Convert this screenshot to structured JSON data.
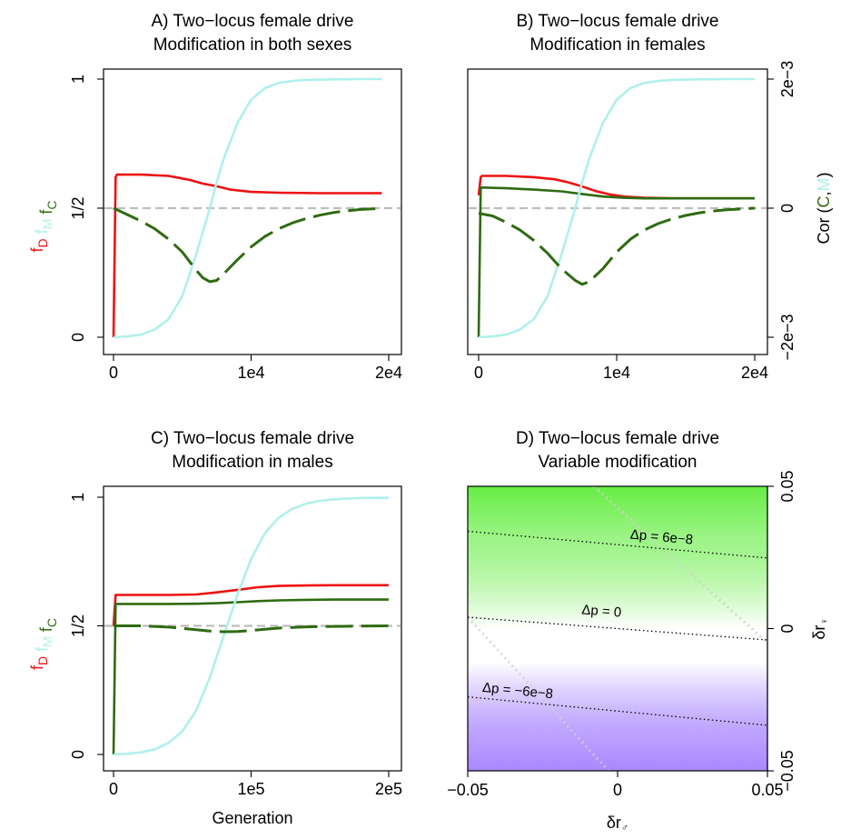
{
  "colors": {
    "drive": "#ee1111",
    "modifier": "#aff0ec",
    "cor": "#2e6b12",
    "reference": "#bdbdbd",
    "contour": "#000000",
    "green": "#66ee44",
    "purple": "#aa88ff"
  },
  "chart_data": [
    {
      "id": "A",
      "type": "line",
      "title": [
        "A) Two−locus female drive",
        "Modification in both sexes"
      ],
      "xlim": [
        0,
        20000
      ],
      "ylim": [
        0,
        1
      ],
      "xticks": [
        {
          "v": 0,
          "label": "0"
        },
        {
          "v": 10000,
          "label": "1e4"
        },
        {
          "v": 20000,
          "label": "2e4"
        }
      ],
      "yticks": [
        {
          "v": 0,
          "label": "0"
        },
        {
          "v": 0.5,
          "label": "1/2"
        },
        {
          "v": 1,
          "label": "1"
        }
      ],
      "ylabel": {
        "parts": [
          {
            "t": "f",
            "s": "D",
            "c": "drive"
          },
          {
            "t": "f",
            "s": "M",
            "c": "modifier"
          },
          {
            "t": "f",
            "s": "C",
            "c": "cor"
          }
        ]
      },
      "reference_y": 0.5,
      "series": [
        {
          "name": "f_D",
          "color": "drive",
          "x": [
            0,
            150,
            250,
            2000,
            4000,
            5500,
            6500,
            7500,
            8500,
            10000,
            12000,
            15000,
            19500
          ],
          "y": [
            0.0,
            0.62,
            0.63,
            0.63,
            0.625,
            0.61,
            0.595,
            0.585,
            0.572,
            0.563,
            0.56,
            0.558,
            0.558
          ]
        },
        {
          "name": "f_M",
          "color": "modifier",
          "x": [
            0,
            1000,
            2000,
            3000,
            4000,
            5000,
            6000,
            7000,
            7500,
            8000,
            9000,
            10000,
            11000,
            12000,
            13000,
            14000,
            16000,
            18000,
            19500
          ],
          "y": [
            0.0,
            0.003,
            0.01,
            0.03,
            0.07,
            0.16,
            0.32,
            0.5,
            0.6,
            0.69,
            0.83,
            0.92,
            0.965,
            0.985,
            0.993,
            0.997,
            0.999,
            1.0,
            1.0
          ]
        },
        {
          "name": "Cor(C,M)",
          "color": "cor",
          "dashed": true,
          "x": [
            0,
            1000,
            2000,
            3000,
            4000,
            5000,
            6000,
            6500,
            7000,
            7500,
            8000,
            9000,
            10000,
            11000,
            12000,
            13000,
            14000,
            15000,
            16000,
            17000,
            18000,
            19000,
            19500
          ],
          "y": [
            0.5,
            0.475,
            0.45,
            0.42,
            0.38,
            0.33,
            0.26,
            0.23,
            0.215,
            0.22,
            0.245,
            0.3,
            0.35,
            0.39,
            0.42,
            0.443,
            0.46,
            0.473,
            0.483,
            0.49,
            0.495,
            0.498,
            0.5
          ]
        }
      ]
    },
    {
      "id": "B",
      "type": "line",
      "title": [
        "B) Two−locus female drive",
        "Modification in females"
      ],
      "xlim": [
        0,
        20000
      ],
      "ylim": [
        0,
        1
      ],
      "xticks": [
        {
          "v": 0,
          "label": "0"
        },
        {
          "v": 10000,
          "label": "1e4"
        },
        {
          "v": 20000,
          "label": "2e4"
        }
      ],
      "right_axis": {
        "label": {
          "parts": [
            {
              "t": "Cor (",
              "c": "black"
            },
            {
              "t": "C",
              "c": "cor"
            },
            {
              "t": ",",
              "c": "black"
            },
            {
              "t": "M",
              "c": "modifier"
            },
            {
              "t": ")",
              "c": "black"
            }
          ]
        },
        "ticks": [
          {
            "v": 0,
            "label": "−2e−3"
          },
          {
            "v": 0.5,
            "label": "0"
          },
          {
            "v": 1,
            "label": "2e−3"
          }
        ]
      },
      "reference_y": 0.5,
      "series": [
        {
          "name": "f_D",
          "color": "drive",
          "x": [
            0,
            150,
            250,
            2000,
            4000,
            5500,
            6500,
            7500,
            8500,
            9500,
            10500,
            12000,
            14000,
            16000,
            20000
          ],
          "y": [
            0.55,
            0.62,
            0.625,
            0.625,
            0.62,
            0.612,
            0.6,
            0.584,
            0.566,
            0.553,
            0.545,
            0.54,
            0.538,
            0.538,
            0.538
          ]
        },
        {
          "name": "f_C",
          "color": "cor",
          "x": [
            0,
            150,
            250,
            2000,
            4000,
            6000,
            7500,
            9000,
            10500,
            12000,
            14000,
            16000,
            20000
          ],
          "y": [
            0.0,
            0.58,
            0.58,
            0.577,
            0.572,
            0.565,
            0.555,
            0.545,
            0.54,
            0.538,
            0.538,
            0.538,
            0.538
          ]
        },
        {
          "name": "f_M",
          "color": "modifier",
          "x": [
            0,
            1000,
            2000,
            3000,
            4000,
            5000,
            6000,
            7000,
            7500,
            8000,
            9000,
            10000,
            11000,
            12000,
            13000,
            14000,
            16000,
            18000,
            20000
          ],
          "y": [
            0.0,
            0.003,
            0.01,
            0.03,
            0.07,
            0.16,
            0.32,
            0.5,
            0.6,
            0.69,
            0.83,
            0.92,
            0.965,
            0.985,
            0.993,
            0.997,
            0.999,
            1.0,
            1.0
          ]
        },
        {
          "name": "Cor(C,M)",
          "color": "cor",
          "dashed": true,
          "x": [
            0,
            1000,
            2000,
            3000,
            4000,
            5000,
            6000,
            7000,
            7500,
            8000,
            9000,
            10000,
            11000,
            12000,
            13000,
            14000,
            15000,
            16000,
            17000,
            18000,
            19000,
            20000
          ],
          "y": [
            0.48,
            0.47,
            0.445,
            0.415,
            0.375,
            0.325,
            0.265,
            0.22,
            0.205,
            0.215,
            0.265,
            0.33,
            0.38,
            0.415,
            0.44,
            0.458,
            0.472,
            0.482,
            0.489,
            0.494,
            0.497,
            0.5
          ]
        }
      ]
    },
    {
      "id": "C",
      "type": "line",
      "title": [
        "C) Two−locus female drive",
        "Modification in males"
      ],
      "xlim": [
        0,
        200000
      ],
      "ylim": [
        0,
        1
      ],
      "xticks": [
        {
          "v": 0,
          "label": "0"
        },
        {
          "v": 100000,
          "label": "1e5"
        },
        {
          "v": 200000,
          "label": "2e5"
        }
      ],
      "yticks": [
        {
          "v": 0,
          "label": "0"
        },
        {
          "v": 0.5,
          "label": "1/2"
        },
        {
          "v": 1,
          "label": "1"
        }
      ],
      "xlabel": "Generation",
      "ylabel": {
        "parts": [
          {
            "t": "f",
            "s": "D",
            "c": "drive"
          },
          {
            "t": "f",
            "s": "M",
            "c": "modifier"
          },
          {
            "t": "f",
            "s": "C",
            "c": "cor"
          }
        ]
      },
      "reference_y": 0.5,
      "series": [
        {
          "name": "f_D",
          "color": "drive",
          "x": [
            0,
            1500,
            3000,
            40000,
            60000,
            75000,
            90000,
            105000,
            120000,
            140000,
            160000,
            200000
          ],
          "y": [
            0.5,
            0.62,
            0.62,
            0.62,
            0.622,
            0.63,
            0.64,
            0.65,
            0.655,
            0.657,
            0.658,
            0.658
          ]
        },
        {
          "name": "f_C",
          "color": "cor",
          "x": [
            0,
            1500,
            3000,
            40000,
            60000,
            75000,
            90000,
            105000,
            120000,
            140000,
            160000,
            200000
          ],
          "y": [
            0.0,
            0.585,
            0.585,
            0.585,
            0.586,
            0.588,
            0.592,
            0.596,
            0.599,
            0.601,
            0.602,
            0.602
          ]
        },
        {
          "name": "f_M",
          "color": "modifier",
          "x": [
            0,
            10000,
            20000,
            30000,
            40000,
            50000,
            60000,
            70000,
            80000,
            90000,
            100000,
            110000,
            120000,
            130000,
            140000,
            150000,
            160000,
            180000,
            200000
          ],
          "y": [
            0.0,
            0.003,
            0.008,
            0.02,
            0.045,
            0.09,
            0.17,
            0.3,
            0.46,
            0.62,
            0.76,
            0.86,
            0.92,
            0.955,
            0.975,
            0.986,
            0.992,
            0.997,
            0.998
          ]
        },
        {
          "name": "Cor(C,M)",
          "color": "cor",
          "dashed": true,
          "x": [
            0,
            20000,
            40000,
            60000,
            70000,
            80000,
            90000,
            100000,
            110000,
            120000,
            130000,
            140000,
            160000,
            180000,
            200000
          ],
          "y": [
            0.5,
            0.5,
            0.495,
            0.485,
            0.48,
            0.477,
            0.478,
            0.482,
            0.487,
            0.491,
            0.494,
            0.496,
            0.498,
            0.499,
            0.5
          ]
        }
      ]
    },
    {
      "id": "D",
      "type": "heatmap",
      "title": [
        "D) Two−locus female drive",
        "Variable modification"
      ],
      "xlim": [
        -0.05,
        0.05
      ],
      "ylim": [
        -0.05,
        0.05
      ],
      "xticks": [
        {
          "v": -0.05,
          "label": "−0.05"
        },
        {
          "v": 0,
          "label": "0"
        },
        {
          "v": 0.05,
          "label": "0.05"
        }
      ],
      "yticks": [
        {
          "v": -0.05,
          "label": "−0.05"
        },
        {
          "v": 0,
          "label": "0"
        },
        {
          "v": 0.05,
          "label": "0.05"
        }
      ],
      "xlabel": {
        "t": "δr",
        "s": "♂"
      },
      "ylabel": {
        "t": "δr",
        "s": "♀"
      },
      "contours": [
        {
          "label": "Δp = 6e−8",
          "from": [
            -0.05,
            0.0342
          ],
          "to": [
            0.05,
            0.0248
          ],
          "label_at": [
            0.0145,
            0.03
          ]
        },
        {
          "label": "Δp = 0",
          "from": [
            -0.05,
            0.004
          ],
          "to": [
            0.05,
            -0.004
          ],
          "label_at": [
            -0.0055,
            0.004
          ]
        },
        {
          "label": "Δp = −6e−8",
          "from": [
            -0.05,
            -0.024
          ],
          "to": [
            0.05,
            -0.034
          ],
          "label_at": [
            -0.0335,
            -0.024
          ]
        }
      ],
      "diagonals": [
        {
          "from": [
            -0.008,
            0.05
          ],
          "to": [
            0.05,
            -0.005
          ]
        },
        {
          "from": [
            -0.05,
            0.004
          ],
          "to": [
            -0.003,
            -0.05
          ]
        }
      ]
    }
  ]
}
